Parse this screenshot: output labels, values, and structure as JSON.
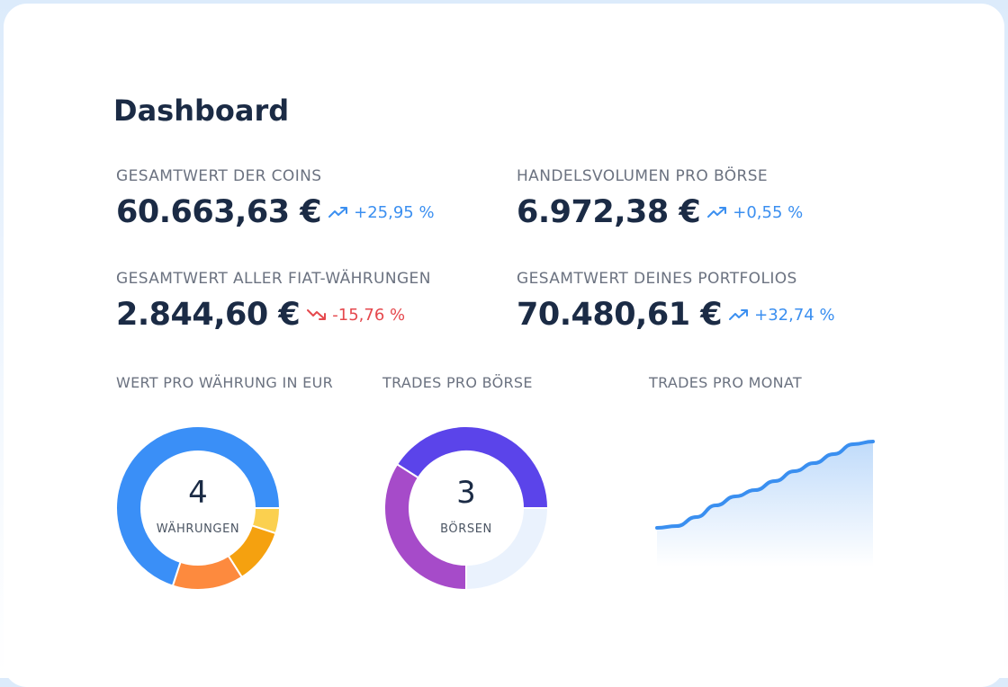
{
  "header": {
    "title": "Dashboard"
  },
  "kpis": [
    {
      "label": "GESAMTWERT DER COINS",
      "value": "60.663,63 €",
      "change": "+25,95 %",
      "trend": "up"
    },
    {
      "label": "HANDELSVOLUMEN PRO BÖRSE",
      "value": "6.972,38 €",
      "change": "+0,55 %",
      "trend": "up"
    },
    {
      "label": "GESAMTWERT ALLER FIAT-WÄHRUNGEN",
      "value": "2.844,60 €",
      "change": "-15,76 %",
      "trend": "down"
    },
    {
      "label": "GESAMTWERT DEINES PORTFOLIOS",
      "value": "70.480,61 €",
      "change": "+32,74 %",
      "trend": "up"
    }
  ],
  "chart_data": [
    {
      "type": "donut",
      "title": "WERT PRO WÄHRUNG IN EUR",
      "center_value": 4,
      "center_label": "WÄHRUNGEN",
      "values": [
        5,
        11,
        14,
        70
      ],
      "colors": [
        "#fbd04f",
        "#f5a10f",
        "#fd8a3e",
        "#3a8ff7"
      ]
    },
    {
      "type": "donut",
      "title": "TRADES PRO BÖRSE",
      "center_value": 3,
      "center_label": "BÖRSEN",
      "values": [
        25,
        34,
        41
      ],
      "colors": [
        "#eaf2fd",
        "#a64bc9",
        "#5b44ea"
      ]
    },
    {
      "type": "area",
      "title": "TRADES PRO MONAT",
      "color": "#3a8ff0",
      "values": [
        43,
        45,
        55,
        68,
        78,
        85,
        95,
        106,
        115,
        125,
        136,
        139
      ]
    }
  ]
}
